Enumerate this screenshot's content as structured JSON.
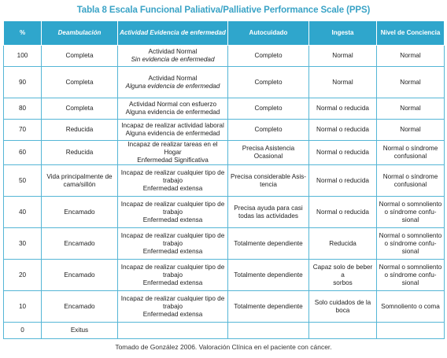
{
  "title": "Tabla 8 Escala Funcional Paliativa/Palliative Performance Scale (PPS)",
  "headers": {
    "pct": "%",
    "deambulacion": "Deambulación",
    "actividad": "Actividad Evidencia de enfermedad",
    "autocuidado": "Autocuidado",
    "ingesta": "Ingesta",
    "conciencia": "Nivel de Conciencia"
  },
  "rows": [
    {
      "pct": "100",
      "deambulacion": "Completa",
      "actividad_1": "Actividad Normal",
      "actividad_2": "Sin evidencia de enfermedad",
      "autocuidado": "Completo",
      "ingesta": "Normal",
      "conciencia": "Normal"
    },
    {
      "pct": "90",
      "deambulacion": "Completa",
      "actividad_1": "Actividad Normal",
      "actividad_2": "Alguna evidencia de enfermedad",
      "autocuidado": "Completo",
      "ingesta": "Normal",
      "conciencia": "Normal"
    },
    {
      "pct": "80",
      "deambulacion": "Completa",
      "actividad_1": "Actividad Normal con esfuerzo",
      "actividad_2": "Alguna evidencia de enfermedad",
      "autocuidado": "Completo",
      "ingesta": "Normal o reducida",
      "conciencia": "Normal"
    },
    {
      "pct": "70",
      "deambulacion": "Reducida",
      "actividad_1": "Incapaz de realizar actividad laboral",
      "actividad_2": "Alguna evidencia de enfermedad",
      "autocuidado": "Completo",
      "ingesta": "Normal o reducida",
      "conciencia": "Normal"
    },
    {
      "pct": "60",
      "deambulacion": "Reducida",
      "actividad_1": "Incapaz de realizar tareas en el Hogar",
      "actividad_2": "Enfermedad Significativa",
      "autocuidado": "Precisa Asistencia Ocasional",
      "ingesta": "Normal o reducida",
      "conciencia_1": "Normal o síndrome",
      "conciencia_2": "confusional"
    },
    {
      "pct": "50",
      "deambulacion_1": "Vida principalmente de",
      "deambulacion_2": "cama/sillón",
      "actividad_1": "Incapaz de realizar cualquier tipo de",
      "actividad_2": "trabajo",
      "actividad_3": "Enfermedad extensa",
      "autocuidado_1": "Precisa considerable Asis-",
      "autocuidado_2": "tencia",
      "ingesta": "Normal o reducida",
      "conciencia_1": "Normal o síndrome",
      "conciencia_2": "confusional"
    },
    {
      "pct": "40",
      "deambulacion": "Encamado",
      "actividad_1": "Incapaz de realizar cualquier tipo de",
      "actividad_2": "trabajo",
      "actividad_3": "Enfermedad extensa",
      "autocuidado_1": "Precisa ayuda para casi",
      "autocuidado_2": "todas las actividades",
      "ingesta": "Normal o reducida",
      "conciencia_1": "Normal o somnoliento",
      "conciencia_2": "o síndrome confu-",
      "conciencia_3": "sional"
    },
    {
      "pct": "30",
      "deambulacion": "Encamado",
      "actividad_1": "Incapaz de realizar cualquier tipo de",
      "actividad_2": "trabajo",
      "actividad_3": "Enfermedad extensa",
      "autocuidado": "Totalmente dependiente",
      "ingesta": "Reducida",
      "conciencia_1": "Normal o somnoliento",
      "conciencia_2": "o síndrome confu-",
      "conciencia_3": "sional"
    },
    {
      "pct": "20",
      "deambulacion": "Encamado",
      "actividad_1": "Incapaz de realizar cualquier tipo de",
      "actividad_2": "trabajo",
      "actividad_3": "Enfermedad extensa",
      "autocuidado": "Totalmente dependiente",
      "ingesta_1": "Capaz solo de beber a",
      "ingesta_2": "sorbos",
      "conciencia_1": "Normal o somnoliento",
      "conciencia_2": "o síndrome confu-",
      "conciencia_3": "sional"
    },
    {
      "pct": "10",
      "deambulacion": "Encamado",
      "actividad_1": "Incapaz de realizar cualquier tipo de",
      "actividad_2": "trabajo",
      "actividad_3": "Enfermedad extensa",
      "autocuidado": "Totalmente dependiente",
      "ingesta": "Solo cuidados de la boca",
      "conciencia": "Somnoliento o coma"
    },
    {
      "pct": "0",
      "deambulacion": "Exitus"
    }
  ],
  "caption": "Tomado de González 2006. Valoración Clínica en el paciente con cáncer.",
  "colors": {
    "title": "#3aa3c6",
    "header_bg": "#2fa6cc",
    "border": "#55b6d6"
  }
}
